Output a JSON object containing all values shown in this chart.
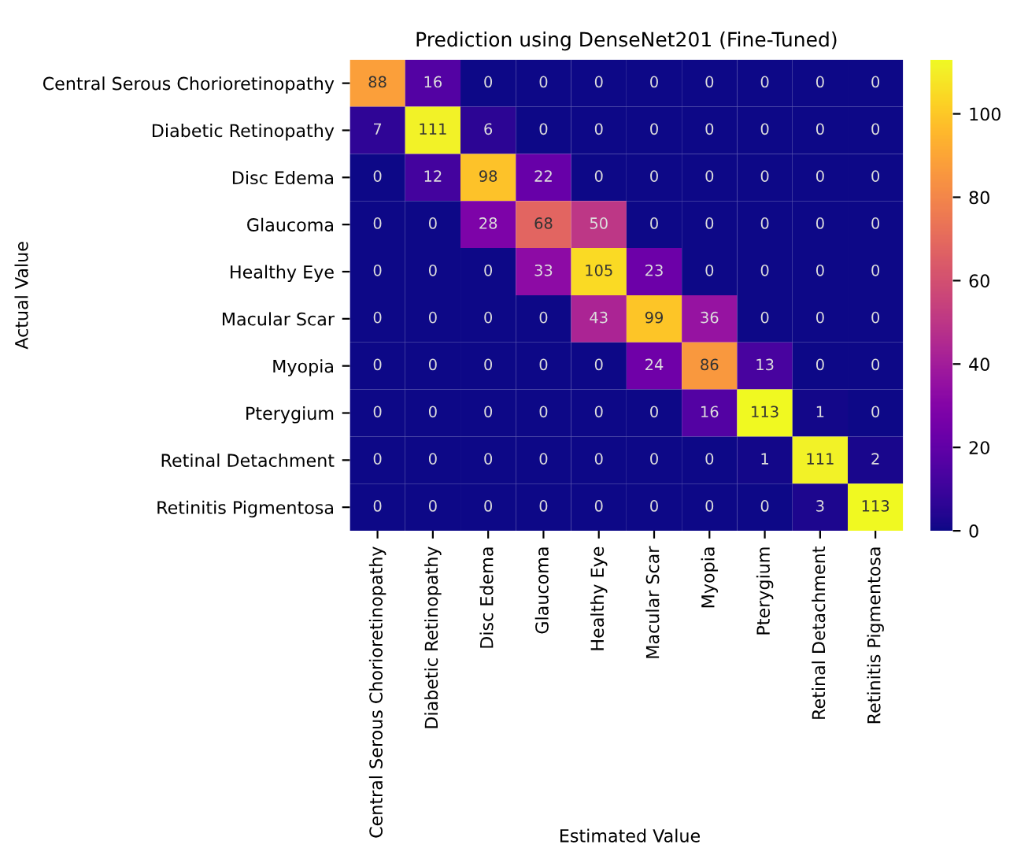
{
  "chart_data": {
    "type": "heatmap",
    "title": "Prediction using DenseNet201 (Fine-Tuned)",
    "xlabel": "Estimated Value",
    "ylabel": "Actual Value",
    "categories": [
      "Central Serous Chorioretinopathy",
      "Diabetic Retinopathy",
      "Disc Edema",
      "Glaucoma",
      "Healthy Eye",
      "Macular Scar",
      "Myopia",
      "Pterygium",
      "Retinal Detachment",
      "Retinitis Pigmentosa"
    ],
    "y_categories": [
      "Central Serous Chorioretinopathy",
      "Diabetic Retinopathy",
      "Disc Edema",
      "Glaucoma",
      "Healthy Eye",
      "Macular Scar",
      "Myopia",
      "Pterygium",
      "Retinal Detachment",
      "Retinitis Pigmentosa"
    ],
    "cells": [
      [
        88,
        16,
        0,
        0,
        0,
        0,
        0,
        0,
        0,
        0
      ],
      [
        7,
        111,
        6,
        0,
        0,
        0,
        0,
        0,
        0,
        0
      ],
      [
        0,
        12,
        98,
        22,
        0,
        0,
        0,
        0,
        0,
        0
      ],
      [
        0,
        0,
        28,
        68,
        50,
        0,
        0,
        0,
        0,
        0
      ],
      [
        0,
        0,
        0,
        33,
        105,
        23,
        0,
        0,
        0,
        0
      ],
      [
        0,
        0,
        0,
        0,
        43,
        99,
        36,
        0,
        0,
        0
      ],
      [
        0,
        0,
        0,
        0,
        0,
        24,
        86,
        13,
        0,
        0
      ],
      [
        0,
        0,
        0,
        0,
        0,
        0,
        16,
        113,
        1,
        0
      ],
      [
        0,
        0,
        0,
        0,
        0,
        0,
        0,
        1,
        111,
        2
      ],
      [
        0,
        0,
        0,
        0,
        0,
        0,
        0,
        0,
        3,
        113
      ]
    ],
    "data_labels": true,
    "clim": [
      0,
      113
    ],
    "cticks": [
      0,
      20,
      40,
      60,
      80,
      100
    ]
  }
}
